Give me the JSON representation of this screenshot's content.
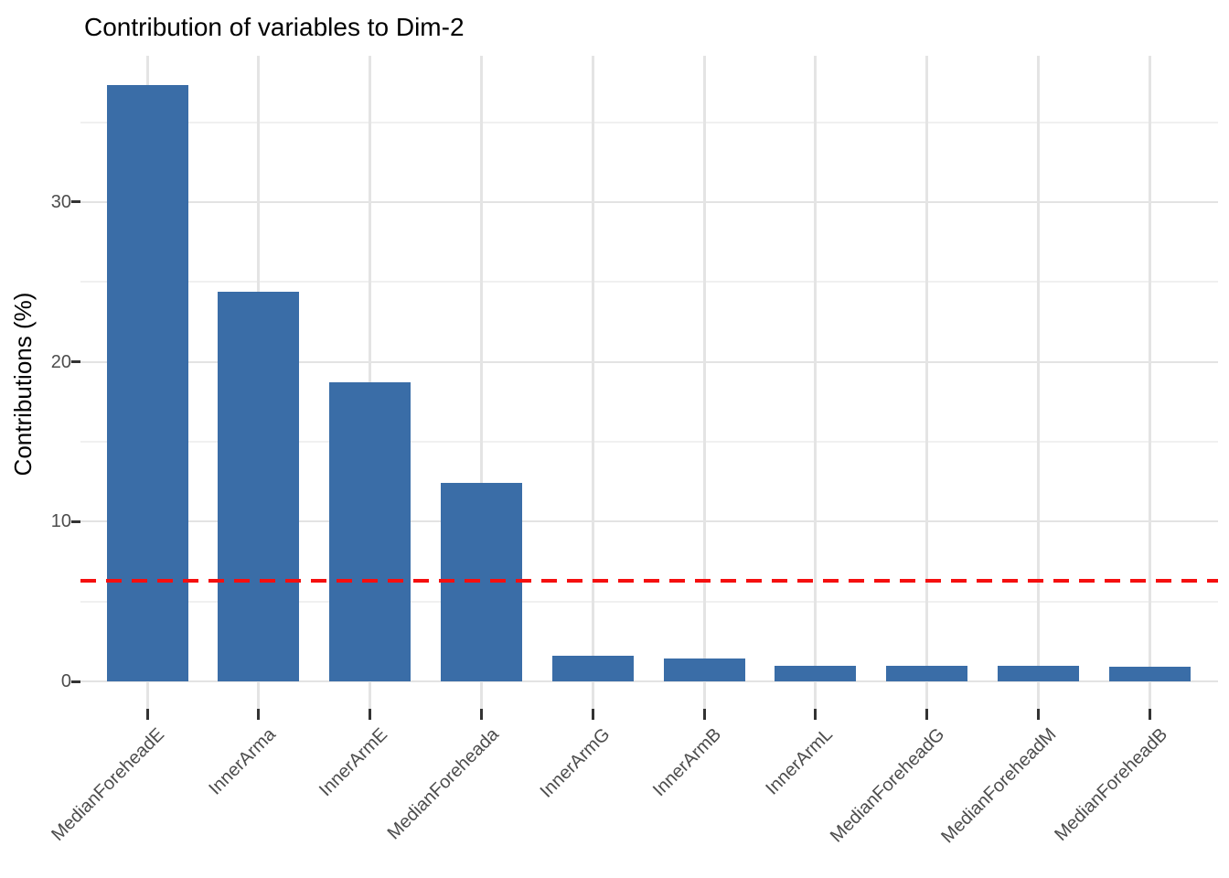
{
  "chart_data": {
    "type": "bar",
    "title": "Contribution of variables to Dim-2",
    "ylabel": "Contributions (%)",
    "xlabel": "",
    "categories": [
      "MedianForeheadE",
      "InnerArma",
      "InnerArmE",
      "MedianForeheada",
      "InnerArmG",
      "InnerArmB",
      "InnerArmL",
      "MedianForeheadG",
      "MedianForeheadM",
      "MedianForeheadB"
    ],
    "values": [
      37.3,
      24.4,
      18.7,
      12.4,
      1.6,
      1.45,
      1.0,
      0.95,
      0.95,
      0.9
    ],
    "ylim": [
      0,
      39
    ],
    "yticks_major": [
      0,
      10,
      20,
      30
    ],
    "yticks_minor": [
      5,
      15,
      25,
      35
    ],
    "grid": "on",
    "legend": "none",
    "bar_color": "#3a6da7",
    "reference_line": {
      "value": 6.3,
      "color": "#f50f0f",
      "style": "dashed"
    }
  }
}
